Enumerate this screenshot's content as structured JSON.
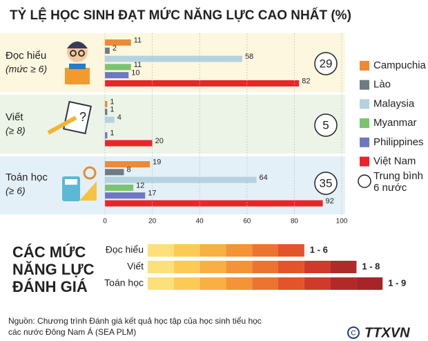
{
  "chart_data": {
    "type": "grouped-hbar",
    "title": "TỶ LỆ HỌC SINH ĐẠT MỨC NĂNG LỰC CAO NHẤT (%)",
    "categories": [
      "Đọc hiểu",
      "Viết",
      "Toán học"
    ],
    "category_notes": [
      "(mức ≥ 6)",
      "(≥ 8)",
      "(≥ 6)"
    ],
    "series": [
      {
        "name": "Campuchia",
        "color": "#ee8a35",
        "values": [
          11,
          1,
          19
        ]
      },
      {
        "name": "Lào",
        "color": "#6f7b80",
        "values": [
          2,
          1,
          8
        ]
      },
      {
        "name": "Malaysia",
        "color": "#b5d3df",
        "values": [
          58,
          4,
          64
        ]
      },
      {
        "name": "Myanmar",
        "color": "#7cc36e",
        "values": [
          11,
          null,
          12
        ]
      },
      {
        "name": "Philippines",
        "color": "#6e78c0",
        "values": [
          10,
          1,
          17
        ]
      },
      {
        "name": "Việt Nam",
        "color": "#e8262a",
        "values": [
          82,
          20,
          92
        ]
      }
    ],
    "average": {
      "name": "Trung bình 6 nước",
      "values": [
        29,
        5,
        35
      ]
    },
    "xlim": [
      0,
      100
    ],
    "xticks": [
      0,
      20,
      40,
      60,
      80,
      100
    ]
  },
  "scale": {
    "title": [
      "CÁC MỨC",
      "NĂNG LỰC",
      "ĐÁNH GIÁ"
    ],
    "rows": [
      {
        "label": "Đọc hiểu",
        "range": "1 - 6",
        "levels": 6
      },
      {
        "label": "Viết",
        "range": "1 - 8",
        "levels": 8
      },
      {
        "label": "Toán học",
        "range": "1 - 9",
        "levels": 9
      }
    ]
  },
  "source": [
    "Nguồn: Chương trình Đánh giá kết quả học tập của học sinh tiểu học",
    "các nước Đông Nam Á (SEA PLM)"
  ],
  "logo": "TTXVN"
}
